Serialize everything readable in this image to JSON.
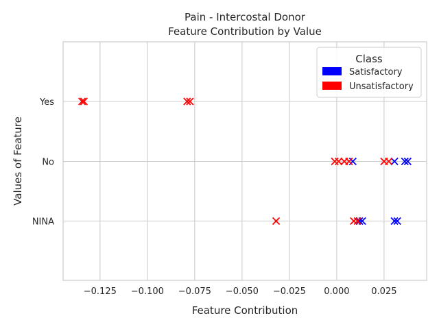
{
  "chart_data": {
    "type": "scatter",
    "title_line1": "Pain - Intercostal Donor",
    "title_line2": "Feature Contribution by Value",
    "xlabel": "Feature Contribution",
    "ylabel": "Values of Feature",
    "xlim": [
      -0.1445,
      0.0475
    ],
    "x_ticks": [
      -0.125,
      -0.1,
      -0.075,
      -0.05,
      -0.025,
      0.0,
      0.025
    ],
    "x_tick_labels": [
      "−0.125",
      "−0.100",
      "−0.075",
      "−0.050",
      "−0.025",
      "0.000",
      "0.025"
    ],
    "categories": [
      "Yes",
      "No",
      "NINA"
    ],
    "grid": true,
    "legend": {
      "title": "Class",
      "position": "top-right",
      "entries": [
        {
          "label": "Satisfactory",
          "color": "#0000ff"
        },
        {
          "label": "Unsatisfactory",
          "color": "#ff0000"
        }
      ]
    },
    "series": [
      {
        "name": "Satisfactory",
        "color": "#0000ff",
        "points": [
          {
            "x": 0.0085,
            "y": "No"
          },
          {
            "x": 0.0305,
            "y": "No"
          },
          {
            "x": 0.036,
            "y": "No"
          },
          {
            "x": 0.0375,
            "y": "No"
          },
          {
            "x": 0.012,
            "y": "NINA"
          },
          {
            "x": 0.0135,
            "y": "NINA"
          },
          {
            "x": 0.0305,
            "y": "NINA"
          },
          {
            "x": 0.032,
            "y": "NINA"
          }
        ]
      },
      {
        "name": "Unsatisfactory",
        "color": "#ff0000",
        "points": [
          {
            "x": -0.1345,
            "y": "Yes"
          },
          {
            "x": -0.1335,
            "y": "Yes"
          },
          {
            "x": -0.079,
            "y": "Yes"
          },
          {
            "x": -0.0775,
            "y": "Yes"
          },
          {
            "x": -0.001,
            "y": "No"
          },
          {
            "x": 0.001,
            "y": "No"
          },
          {
            "x": 0.004,
            "y": "No"
          },
          {
            "x": 0.0065,
            "y": "No"
          },
          {
            "x": 0.025,
            "y": "No"
          },
          {
            "x": 0.0275,
            "y": "No"
          },
          {
            "x": -0.032,
            "y": "NINA"
          },
          {
            "x": 0.009,
            "y": "NINA"
          },
          {
            "x": 0.011,
            "y": "NINA"
          }
        ]
      }
    ]
  }
}
